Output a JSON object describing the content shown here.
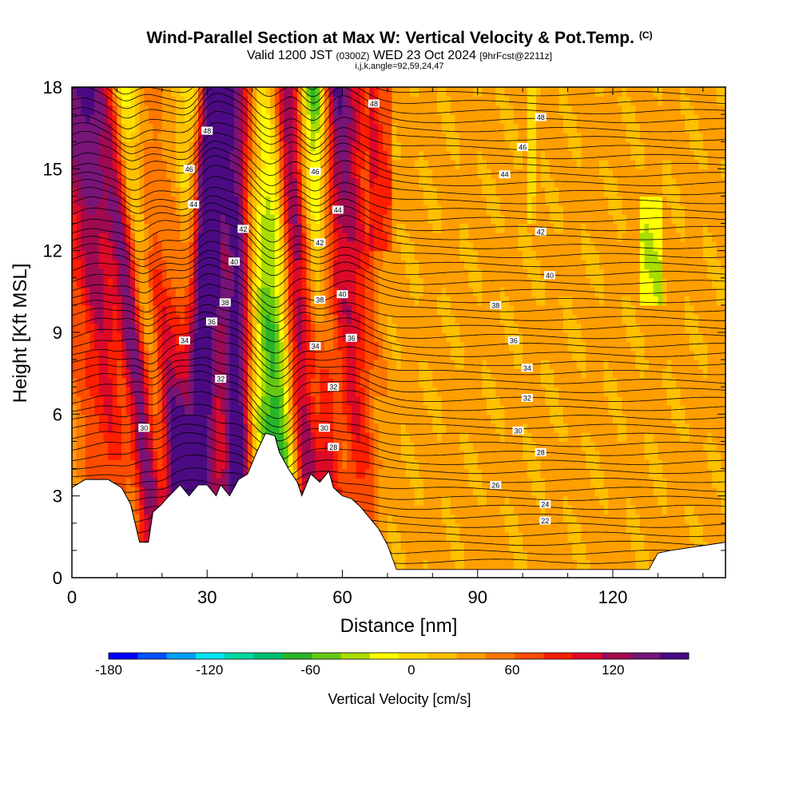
{
  "header": {
    "title": "Wind-Parallel Section at Max W: Vertical Velocity & Pot.Temp.",
    "copyright": "(C)",
    "valid_prefix": "Valid 1200 JST",
    "valid_utc": "(0300Z)",
    "valid_date": "WED 23 Oct 2024",
    "forecast": "[9hrFcst@2211z]",
    "indices": "i,j,k,angle=92,59,24,47"
  },
  "chart_data": {
    "type": "heatmap",
    "title": "Wind-Parallel Section at Max W: Vertical Velocity & Pot.Temp.",
    "xlabel": "Distance [nm]",
    "ylabel": "Height [Kft MSL]",
    "xlim": [
      0,
      145
    ],
    "ylim": [
      0,
      18
    ],
    "x_ticks": [
      "0",
      "30",
      "60",
      "90",
      "120"
    ],
    "y_ticks": [
      "0",
      "3",
      "6",
      "9",
      "12",
      "15",
      "18"
    ],
    "colorbar": {
      "label": "Vertical Velocity [cm/s]",
      "range": [
        -180,
        150
      ],
      "step": 15,
      "tick_labels": [
        "-180",
        "-120",
        "-60",
        "0",
        "60",
        "120"
      ],
      "colors": [
        "#0000ff",
        "#0050ff",
        "#00a0ff",
        "#00e5ee",
        "#00d8a0",
        "#00c070",
        "#28b428",
        "#64c814",
        "#aadc00",
        "#ffff00",
        "#ffdc00",
        "#ffc000",
        "#ff9e00",
        "#ff7800",
        "#ff4b00",
        "#ff1e00",
        "#dc0a28",
        "#a00a50",
        "#781478",
        "#4b0a82"
      ]
    },
    "terrain_kft": [
      [
        0,
        3.3
      ],
      [
        3,
        3.6
      ],
      [
        8,
        3.6
      ],
      [
        11,
        3.3
      ],
      [
        13,
        2.7
      ],
      [
        15,
        1.3
      ],
      [
        17,
        1.3
      ],
      [
        18,
        2.4
      ],
      [
        20,
        2.7
      ],
      [
        21,
        2.9
      ],
      [
        24,
        3.4
      ],
      [
        26,
        3.0
      ],
      [
        28,
        3.4
      ],
      [
        30,
        3.4
      ],
      [
        32,
        3.0
      ],
      [
        33,
        3.4
      ],
      [
        35,
        3.0
      ],
      [
        37,
        3.6
      ],
      [
        39,
        3.8
      ],
      [
        41,
        4.6
      ],
      [
        43,
        5.3
      ],
      [
        45,
        5.2
      ],
      [
        46,
        4.6
      ],
      [
        48,
        4.0
      ],
      [
        50,
        3.5
      ],
      [
        51,
        3.0
      ],
      [
        53,
        3.8
      ],
      [
        55,
        3.5
      ],
      [
        57,
        3.9
      ],
      [
        58,
        3.3
      ],
      [
        60,
        3.0
      ],
      [
        62,
        2.9
      ],
      [
        64,
        2.6
      ],
      [
        66,
        2.2
      ],
      [
        68,
        1.8
      ],
      [
        70,
        1.2
      ],
      [
        72,
        0.3
      ],
      [
        115,
        0.3
      ],
      [
        128,
        0.3
      ],
      [
        130,
        0.9
      ],
      [
        133,
        1.0
      ],
      [
        137,
        1.1
      ],
      [
        145,
        1.3
      ]
    ],
    "updrafts": [
      {
        "x0": 17,
        "x1": 2,
        "w": 10,
        "amp": 80
      },
      {
        "x0": 22,
        "x1": 7,
        "w": 6,
        "amp": 95
      },
      {
        "x0": 27,
        "x1": 31,
        "w": 5,
        "amp": 85
      },
      {
        "x0": 35,
        "x1": 38,
        "w": 5,
        "amp": 80
      },
      {
        "x0": 36,
        "x1": 36,
        "w": 4,
        "amp": 70
      },
      {
        "x0": 52,
        "x1": 46,
        "w": 6,
        "amp": 120
      },
      {
        "x0": 56,
        "x1": 57,
        "w": 4,
        "amp": 90
      },
      {
        "x0": 62,
        "x1": 62,
        "w": 5,
        "amp": 60
      },
      {
        "x0": 25,
        "x1": 32,
        "w": 4,
        "amp": 80
      }
    ],
    "downdrafts": [
      {
        "x0": 21,
        "x1": 11,
        "w": 3,
        "amp": -130
      },
      {
        "x0": 26,
        "x1": 27,
        "w": 3,
        "amp": -80
      },
      {
        "x0": 33,
        "x1": 34,
        "w": 3,
        "amp": -70
      },
      {
        "x0": 45,
        "x1": 40,
        "w": 5,
        "amp": -110
      },
      {
        "x0": 49,
        "x1": 44,
        "w": 3,
        "amp": -80
      },
      {
        "x0": 55,
        "x1": 53,
        "w": 3,
        "amp": -100
      },
      {
        "x0": 60,
        "x1": 55,
        "w": 3,
        "amp": -70
      },
      {
        "x0": 14,
        "x1": 6,
        "w": 3,
        "amp": -70
      }
    ],
    "theta_contour_labels": [
      {
        "text": "48",
        "x": 67,
        "y": 17.4
      },
      {
        "text": "48",
        "x": 104,
        "y": 16.9
      },
      {
        "text": "46",
        "x": 100,
        "y": 15.8
      },
      {
        "text": "44",
        "x": 96,
        "y": 14.8
      },
      {
        "text": "42",
        "x": 104,
        "y": 12.7
      },
      {
        "text": "40",
        "x": 106,
        "y": 11.1
      },
      {
        "text": "38",
        "x": 94,
        "y": 10.0
      },
      {
        "text": "36",
        "x": 98,
        "y": 8.7
      },
      {
        "text": "34",
        "x": 101,
        "y": 7.7
      },
      {
        "text": "32",
        "x": 101,
        "y": 6.6
      },
      {
        "text": "30",
        "x": 99,
        "y": 5.4
      },
      {
        "text": "28",
        "x": 104,
        "y": 4.6
      },
      {
        "text": "26",
        "x": 94,
        "y": 3.4
      },
      {
        "text": "24",
        "x": 105,
        "y": 2.7
      },
      {
        "text": "22",
        "x": 105,
        "y": 2.1
      },
      {
        "text": "48",
        "x": 30,
        "y": 16.4
      },
      {
        "text": "46",
        "x": 26,
        "y": 15.0
      },
      {
        "text": "44",
        "x": 27,
        "y": 13.7
      },
      {
        "text": "42",
        "x": 38,
        "y": 12.8
      },
      {
        "text": "40",
        "x": 36,
        "y": 11.6
      },
      {
        "text": "38",
        "x": 34,
        "y": 10.1
      },
      {
        "text": "36",
        "x": 31,
        "y": 9.4
      },
      {
        "text": "34",
        "x": 25,
        "y": 8.7
      },
      {
        "text": "32",
        "x": 33,
        "y": 7.3
      },
      {
        "text": "30",
        "x": 16,
        "y": 5.5
      },
      {
        "text": "46",
        "x": 54,
        "y": 14.9
      },
      {
        "text": "44",
        "x": 59,
        "y": 13.5
      },
      {
        "text": "42",
        "x": 55,
        "y": 12.3
      },
      {
        "text": "40",
        "x": 60,
        "y": 10.4
      },
      {
        "text": "38",
        "x": 55,
        "y": 10.2
      },
      {
        "text": "36",
        "x": 62,
        "y": 8.8
      },
      {
        "text": "34",
        "x": 54,
        "y": 8.5
      },
      {
        "text": "32",
        "x": 58,
        "y": 7.0
      },
      {
        "text": "30",
        "x": 56,
        "y": 5.5
      },
      {
        "text": "28",
        "x": 58,
        "y": 4.8
      }
    ]
  }
}
